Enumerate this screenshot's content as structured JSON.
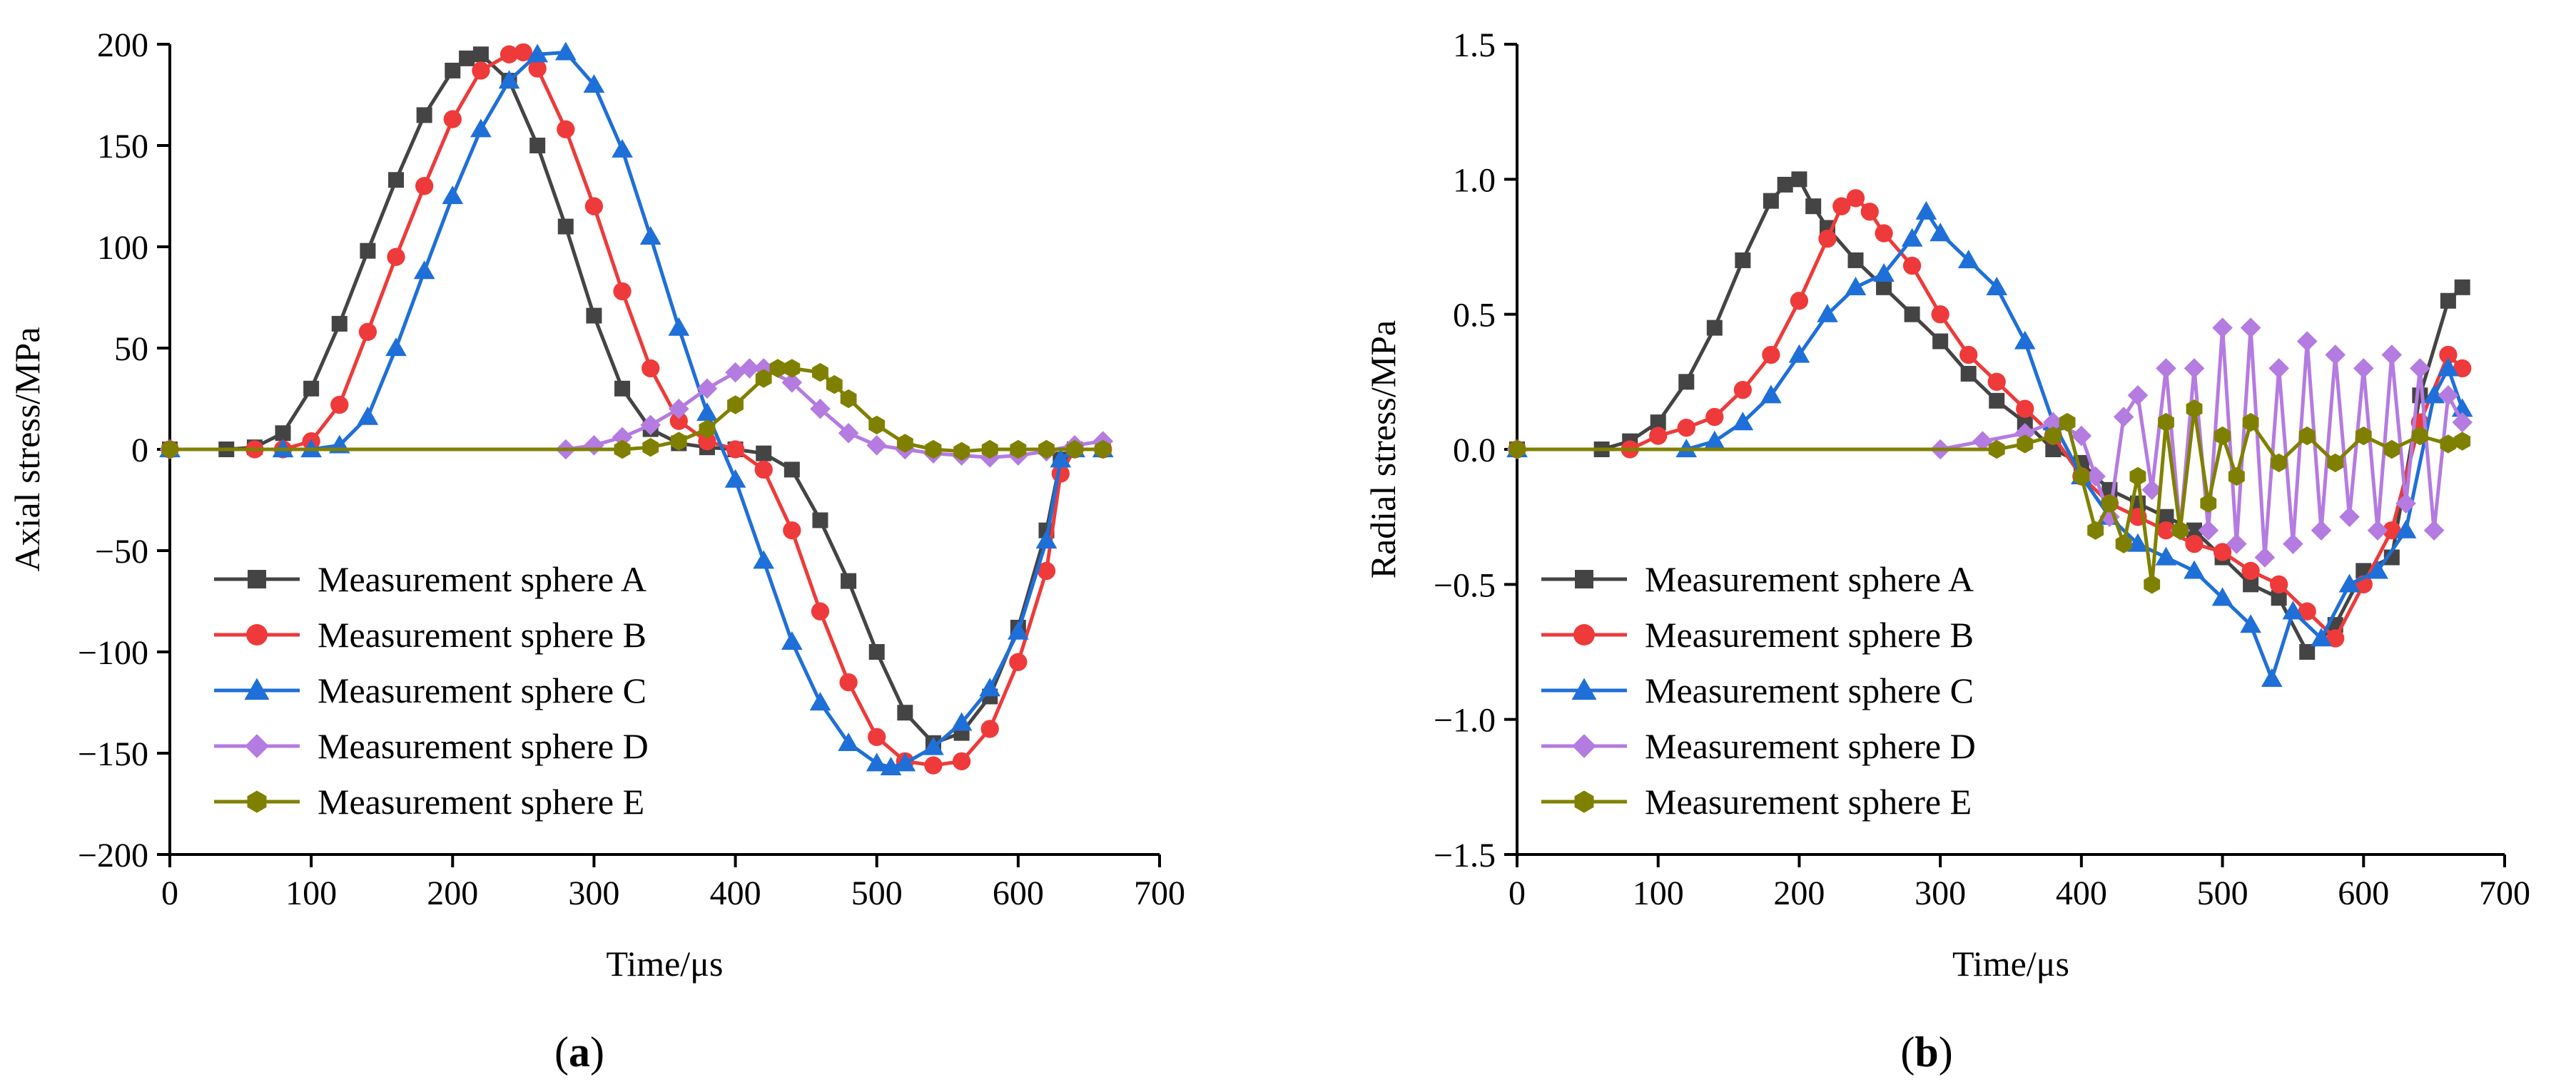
{
  "colors": {
    "A": "#444444",
    "B": "#ee3a3a",
    "C": "#1f6fd8",
    "D": "#b47be0",
    "E": "#808000"
  },
  "panels": {
    "a": {
      "label_open": "(",
      "label_letter": "a",
      "label_close": ")"
    },
    "b": {
      "label_open": "(",
      "label_letter": "b",
      "label_close": ")"
    }
  },
  "chart_data": [
    {
      "id": "a",
      "type": "line",
      "xlabel": "Time/μs",
      "ylabel": "Axial stress/MPa",
      "xlim": [
        0,
        700
      ],
      "ylim": [
        -200,
        200
      ],
      "xticks": [
        0,
        100,
        200,
        300,
        400,
        500,
        600,
        700
      ],
      "yticks": [
        -200,
        -150,
        -100,
        -50,
        0,
        50,
        100,
        150,
        200
      ],
      "ytick_labels": [
        "−200",
        "−150",
        "−100",
        "−50",
        "0",
        "50",
        "100",
        "150",
        "200"
      ],
      "legend_position": "lower-left",
      "series": [
        {
          "key": "A",
          "name": "Measurement sphere A",
          "marker": "square",
          "x": [
            0,
            40,
            60,
            80,
            100,
            120,
            140,
            160,
            180,
            200,
            210,
            220,
            240,
            260,
            280,
            300,
            320,
            340,
            360,
            380,
            400,
            420,
            440,
            460,
            480,
            500,
            520,
            540,
            560,
            580,
            600,
            620,
            630,
            640,
            660
          ],
          "y": [
            0,
            0,
            1,
            8,
            30,
            62,
            98,
            133,
            165,
            187,
            193,
            195,
            182,
            150,
            110,
            66,
            30,
            10,
            3,
            1,
            0,
            -2,
            -10,
            -35,
            -65,
            -100,
            -130,
            -145,
            -140,
            -122,
            -88,
            -40,
            -5,
            0,
            0
          ]
        },
        {
          "key": "B",
          "name": "Measurement sphere B",
          "marker": "circle",
          "x": [
            0,
            60,
            80,
            100,
            120,
            140,
            160,
            180,
            200,
            220,
            240,
            250,
            260,
            280,
            300,
            320,
            340,
            360,
            380,
            400,
            420,
            440,
            460,
            480,
            500,
            520,
            540,
            560,
            580,
            600,
            620,
            630,
            640,
            660
          ],
          "y": [
            0,
            0,
            0,
            4,
            22,
            58,
            95,
            130,
            163,
            187,
            195,
            196,
            188,
            158,
            120,
            78,
            40,
            14,
            4,
            0,
            -10,
            -40,
            -80,
            -115,
            -142,
            -154,
            -156,
            -154,
            -138,
            -105,
            -60,
            -12,
            0,
            0
          ]
        },
        {
          "key": "C",
          "name": "Measurement sphere C",
          "marker": "triangle",
          "x": [
            0,
            80,
            100,
            120,
            140,
            160,
            180,
            200,
            220,
            240,
            260,
            280,
            300,
            320,
            340,
            360,
            380,
            400,
            420,
            440,
            460,
            480,
            500,
            510,
            520,
            540,
            560,
            580,
            600,
            620,
            630,
            640,
            660
          ],
          "y": [
            0,
            0,
            0,
            2,
            16,
            50,
            88,
            125,
            158,
            182,
            195,
            196,
            180,
            148,
            105,
            60,
            18,
            -15,
            -55,
            -95,
            -125,
            -145,
            -155,
            -157,
            -155,
            -147,
            -135,
            -118,
            -90,
            -45,
            -5,
            0,
            0
          ]
        },
        {
          "key": "D",
          "name": "Measurement sphere D",
          "marker": "diamond",
          "x": [
            0,
            280,
            300,
            320,
            340,
            360,
            380,
            400,
            410,
            420,
            440,
            460,
            480,
            500,
            520,
            540,
            560,
            580,
            600,
            620,
            640,
            660
          ],
          "y": [
            0,
            0,
            2,
            6,
            12,
            20,
            30,
            38,
            40,
            40,
            33,
            20,
            8,
            2,
            0,
            -2,
            -3,
            -4,
            -3,
            -1,
            2,
            4
          ]
        },
        {
          "key": "E",
          "name": "Measurement sphere E",
          "marker": "hexagon",
          "x": [
            0,
            320,
            340,
            360,
            380,
            400,
            420,
            430,
            440,
            460,
            470,
            480,
            500,
            520,
            540,
            560,
            580,
            600,
            620,
            640,
            660
          ],
          "y": [
            0,
            0,
            1,
            4,
            10,
            22,
            35,
            40,
            40,
            38,
            32,
            25,
            12,
            3,
            0,
            -1,
            0,
            0,
            0,
            0,
            0
          ]
        }
      ]
    },
    {
      "id": "b",
      "type": "line",
      "xlabel": "Time/μs",
      "ylabel": "Radial stress/MPa",
      "xlim": [
        0,
        700
      ],
      "ylim": [
        -1.5,
        1.5
      ],
      "xticks": [
        0,
        100,
        200,
        300,
        400,
        500,
        600,
        700
      ],
      "yticks": [
        -1.5,
        -1.0,
        -0.5,
        0,
        0.5,
        1.0,
        1.5
      ],
      "ytick_labels": [
        "−1.5",
        "−1.0",
        "−0.5",
        "0.0",
        "0.5",
        "1.0",
        "1.5"
      ],
      "legend_position": "lower-left",
      "series": [
        {
          "key": "A",
          "name": "Measurement sphere A",
          "marker": "square",
          "x": [
            0,
            60,
            80,
            100,
            120,
            140,
            160,
            180,
            190,
            200,
            210,
            220,
            240,
            260,
            280,
            300,
            320,
            340,
            360,
            380,
            400,
            420,
            440,
            460,
            480,
            500,
            520,
            540,
            560,
            580,
            600,
            620,
            640,
            660,
            670
          ],
          "y": [
            0,
            0,
            0.03,
            0.1,
            0.25,
            0.45,
            0.7,
            0.92,
            0.98,
            1.0,
            0.9,
            0.82,
            0.7,
            0.6,
            0.5,
            0.4,
            0.28,
            0.18,
            0.1,
            0.0,
            -0.05,
            -0.15,
            -0.2,
            -0.25,
            -0.3,
            -0.4,
            -0.5,
            -0.55,
            -0.75,
            -0.65,
            -0.45,
            -0.4,
            0.2,
            0.55,
            0.6
          ]
        },
        {
          "key": "B",
          "name": "Measurement sphere B",
          "marker": "circle",
          "x": [
            0,
            80,
            100,
            120,
            140,
            160,
            180,
            200,
            220,
            230,
            240,
            250,
            260,
            280,
            300,
            320,
            340,
            360,
            380,
            400,
            420,
            440,
            460,
            480,
            500,
            520,
            540,
            560,
            580,
            600,
            620,
            640,
            660,
            670
          ],
          "y": [
            0,
            0,
            0.05,
            0.08,
            0.12,
            0.22,
            0.35,
            0.55,
            0.78,
            0.9,
            0.93,
            0.88,
            0.8,
            0.68,
            0.5,
            0.35,
            0.25,
            0.15,
            0.05,
            -0.1,
            -0.2,
            -0.25,
            -0.3,
            -0.35,
            -0.38,
            -0.45,
            -0.5,
            -0.6,
            -0.7,
            -0.5,
            -0.3,
            0.1,
            0.35,
            0.3
          ]
        },
        {
          "key": "C",
          "name": "Measurement sphere C",
          "marker": "triangle",
          "x": [
            0,
            120,
            140,
            160,
            180,
            200,
            220,
            240,
            260,
            280,
            290,
            300,
            320,
            340,
            360,
            380,
            400,
            420,
            440,
            460,
            480,
            500,
            520,
            535,
            550,
            570,
            590,
            610,
            630,
            650,
            660,
            670
          ],
          "y": [
            0,
            0,
            0.03,
            0.1,
            0.2,
            0.35,
            0.5,
            0.6,
            0.65,
            0.78,
            0.88,
            0.8,
            0.7,
            0.6,
            0.4,
            0.1,
            -0.1,
            -0.25,
            -0.35,
            -0.4,
            -0.45,
            -0.55,
            -0.65,
            -0.85,
            -0.6,
            -0.7,
            -0.5,
            -0.45,
            -0.3,
            0.2,
            0.3,
            0.15
          ]
        },
        {
          "key": "D",
          "name": "Measurement sphere D",
          "marker": "diamond",
          "x": [
            0,
            300,
            330,
            360,
            380,
            400,
            410,
            420,
            430,
            440,
            450,
            460,
            470,
            480,
            490,
            500,
            510,
            520,
            530,
            540,
            550,
            560,
            570,
            580,
            590,
            600,
            610,
            620,
            630,
            640,
            650,
            660,
            670
          ],
          "y": [
            0,
            0,
            0.03,
            0.06,
            0.1,
            0.05,
            -0.1,
            -0.25,
            0.12,
            0.2,
            -0.15,
            0.3,
            -0.3,
            0.3,
            -0.3,
            0.45,
            -0.35,
            0.45,
            -0.4,
            0.3,
            -0.35,
            0.4,
            -0.3,
            0.35,
            -0.25,
            0.3,
            -0.3,
            0.35,
            -0.2,
            0.3,
            -0.3,
            0.2,
            0.1
          ]
        },
        {
          "key": "E",
          "name": "Measurement sphere E",
          "marker": "hexagon",
          "x": [
            0,
            340,
            360,
            380,
            390,
            400,
            410,
            420,
            430,
            440,
            450,
            460,
            470,
            480,
            490,
            500,
            510,
            520,
            540,
            560,
            580,
            600,
            620,
            640,
            660,
            670
          ],
          "y": [
            0,
            0,
            0.02,
            0.05,
            0.1,
            -0.1,
            -0.3,
            -0.2,
            -0.35,
            -0.1,
            -0.5,
            0.1,
            -0.3,
            0.15,
            -0.2,
            0.05,
            -0.1,
            0.1,
            -0.05,
            0.05,
            -0.05,
            0.05,
            0,
            0.05,
            0.02,
            0.03
          ]
        }
      ]
    }
  ]
}
